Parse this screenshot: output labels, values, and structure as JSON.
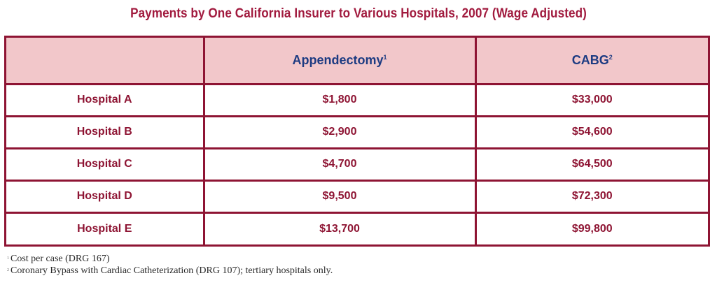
{
  "chart_data": {
    "type": "table",
    "title": "Payments by One California Insurer to Various Hospitals, 2007 (Wage Adjusted)",
    "columns": [
      {
        "label": "",
        "sup": ""
      },
      {
        "label": "Appendectomy",
        "sup": "1"
      },
      {
        "label": "CABG",
        "sup": "2"
      }
    ],
    "rows": [
      {
        "hospital": "Hospital A",
        "appendectomy": "$1,800",
        "cabg": "$33,000"
      },
      {
        "hospital": "Hospital B",
        "appendectomy": "$2,900",
        "cabg": "$54,600"
      },
      {
        "hospital": "Hospital C",
        "appendectomy": "$4,700",
        "cabg": "$64,500"
      },
      {
        "hospital": "Hospital D",
        "appendectomy": "$9,500",
        "cabg": "$72,300"
      },
      {
        "hospital": "Hospital E",
        "appendectomy": "$13,700",
        "cabg": "$99,800"
      }
    ],
    "values": {
      "appendectomy": [
        1800,
        2900,
        4700,
        9500,
        13700
      ],
      "cabg": [
        33000,
        54600,
        64500,
        72300,
        99800
      ]
    },
    "footnotes": [
      {
        "mark": "1",
        "text": "Cost per case (DRG 167)"
      },
      {
        "mark": "2",
        "text": "Coronary Bypass with Cardiac Catheterization (DRG 107); tertiary hospitals only."
      }
    ]
  },
  "colors": {
    "title": "#a11a3e",
    "border": "#8e1433",
    "header_bg": "#f2c7ca",
    "header_text": "#1d3b82",
    "cell_text": "#8e1433"
  }
}
